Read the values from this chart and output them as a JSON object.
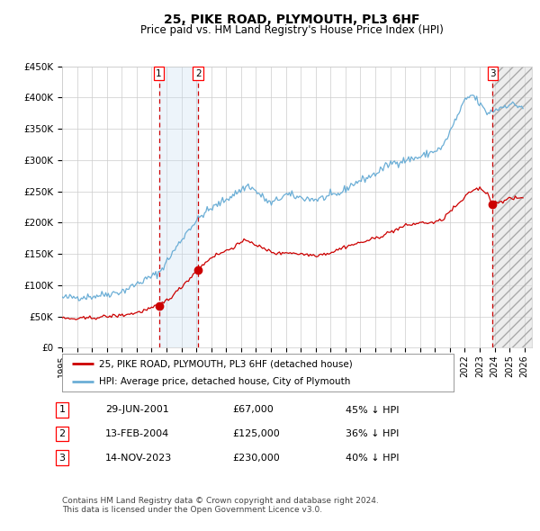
{
  "title": "25, PIKE ROAD, PLYMOUTH, PL3 6HF",
  "subtitle": "Price paid vs. HM Land Registry's House Price Index (HPI)",
  "footer": "Contains HM Land Registry data © Crown copyright and database right 2024.\nThis data is licensed under the Open Government Licence v3.0.",
  "legend_line1": "25, PIKE ROAD, PLYMOUTH, PL3 6HF (detached house)",
  "legend_line2": "HPI: Average price, detached house, City of Plymouth",
  "transactions": [
    {
      "num": 1,
      "date": "29-JUN-2001",
      "price": "£67,000",
      "hpi_diff": "45% ↓ HPI",
      "year": 2001.49
    },
    {
      "num": 2,
      "date": "13-FEB-2004",
      "price": "£125,000",
      "hpi_diff": "36% ↓ HPI",
      "year": 2004.12
    },
    {
      "num": 3,
      "date": "14-NOV-2023",
      "price": "£230,000",
      "hpi_diff": "40% ↓ HPI",
      "year": 2023.87
    }
  ],
  "ylim": [
    0,
    450000
  ],
  "yticks": [
    0,
    50000,
    100000,
    150000,
    200000,
    250000,
    300000,
    350000,
    400000,
    450000
  ],
  "ytick_labels": [
    "£0",
    "£50K",
    "£100K",
    "£150K",
    "£200K",
    "£250K",
    "£300K",
    "£350K",
    "£400K",
    "£450K"
  ],
  "xlim_start": 1995.0,
  "xlim_end": 2026.5,
  "xtick_years": [
    1995,
    1996,
    1997,
    1998,
    1999,
    2000,
    2001,
    2002,
    2003,
    2004,
    2005,
    2006,
    2007,
    2008,
    2009,
    2010,
    2011,
    2012,
    2013,
    2014,
    2015,
    2016,
    2017,
    2018,
    2019,
    2020,
    2021,
    2022,
    2023,
    2024,
    2025,
    2026
  ],
  "hpi_color": "#6baed6",
  "price_color": "#cc0000",
  "transaction_dot_color": "#cc0000",
  "vline_color": "#cc0000",
  "shade_color": "#c6dbef",
  "hatch_color": "#bbbbbb",
  "grid_color": "#cccccc",
  "bg_color": "#ffffff",
  "t1_y": 67000,
  "t2_y": 125000,
  "t3_y": 230000
}
